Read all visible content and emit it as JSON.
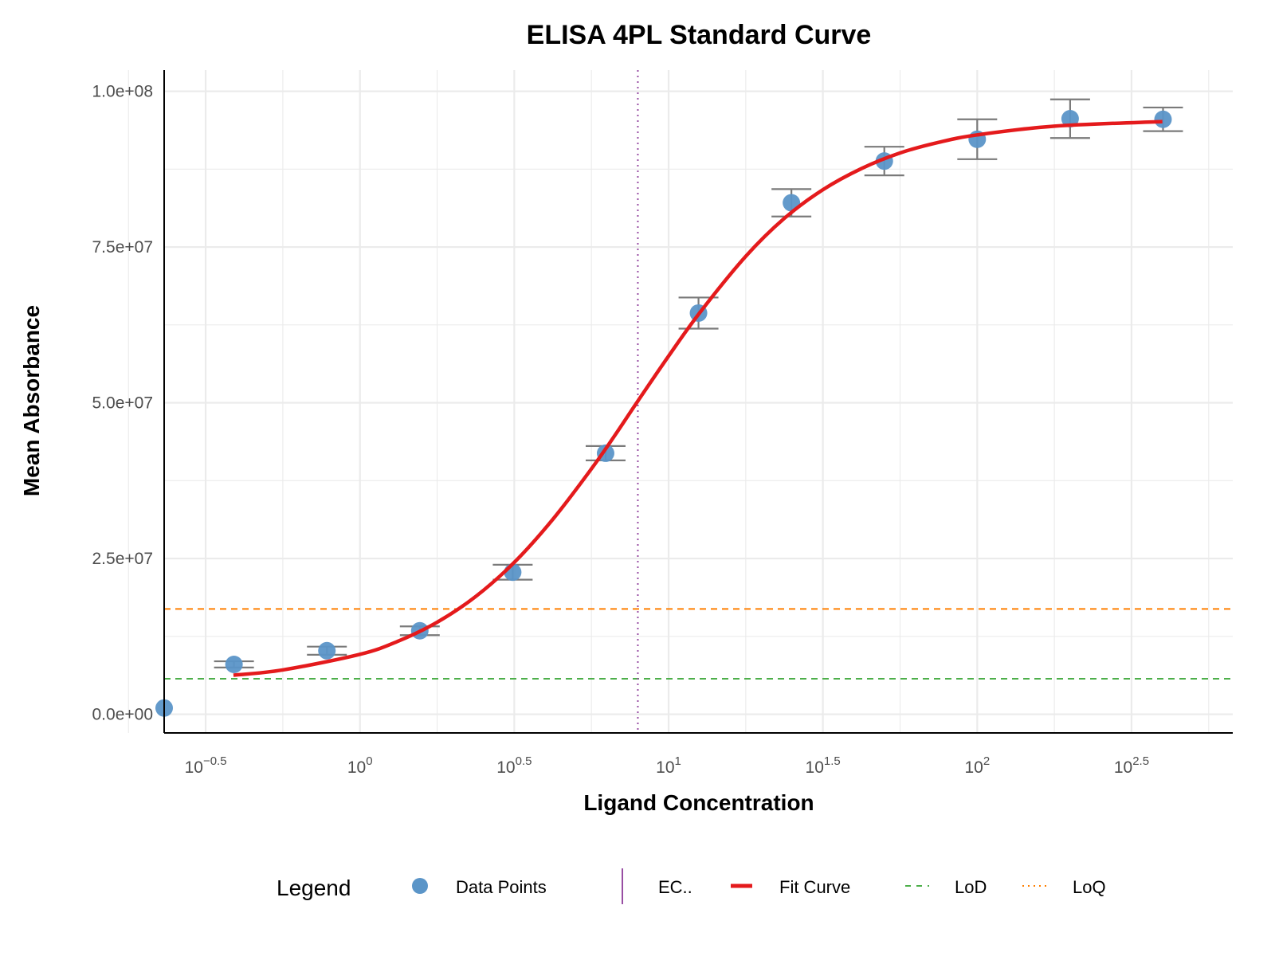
{
  "chart_data": {
    "type": "scatter",
    "title": "ELISA 4PL Standard Curve",
    "xlabel": "Ligand Concentration",
    "ylabel": "Mean Absorbance",
    "x_scale": "log10",
    "xlim": [
      0.232,
      673
    ],
    "ylim": [
      -3000000,
      103400000
    ],
    "grid": true,
    "x_ticks": [
      {
        "value": 0.3162,
        "base": "10",
        "exp": "−0.5"
      },
      {
        "value": 1,
        "base": "10",
        "exp": "0"
      },
      {
        "value": 3.162,
        "base": "10",
        "exp": "0.5"
      },
      {
        "value": 10,
        "base": "10",
        "exp": "1"
      },
      {
        "value": 31.62,
        "base": "10",
        "exp": "1.5"
      },
      {
        "value": 100,
        "base": "10",
        "exp": "2"
      },
      {
        "value": 316.2,
        "base": "10",
        "exp": "2.5"
      }
    ],
    "y_ticks": [
      {
        "value": 0,
        "label": "0.0e+00"
      },
      {
        "value": 25000000,
        "label": "2.5e+07"
      },
      {
        "value": 50000000,
        "label": "5.0e+07"
      },
      {
        "value": 75000000,
        "label": "7.5e+07"
      },
      {
        "value": 100000000,
        "label": "1.0e+08"
      }
    ],
    "series": [
      {
        "name": "Data Points",
        "type": "scatter",
        "color": "#5b95c8",
        "x": [
          0,
          0.390625,
          0.78125,
          1.5625,
          3.125,
          6.25,
          12.5,
          25,
          50,
          100,
          200,
          400
        ],
        "y": [
          1000000,
          8000000,
          10200000,
          13400000,
          22800000,
          41900000,
          64400000,
          82100000,
          88800000,
          92300000,
          95600000,
          95500000
        ],
        "error": [
          0,
          500000,
          650000,
          700000,
          1200000,
          1150000,
          2500000,
          2200000,
          2300000,
          3200000,
          3100000,
          1900000
        ]
      },
      {
        "name": "Fit Curve",
        "type": "line",
        "color": "#e41a1c",
        "x": [
          0.389,
          0.562,
          1,
          1.334,
          1.778,
          2.371,
          3.162,
          4.217,
          5.623,
          6.683,
          7.943,
          10,
          12.59,
          17.78,
          23.71,
          31.62,
          42.17,
          56.23,
          74.99,
          100,
          177.8,
          398.1
        ],
        "y": [
          6270000,
          7110000,
          9620000,
          11760000,
          14770000,
          18900000,
          24380000,
          31300000,
          39400000,
          44700000,
          50250000,
          57500000,
          64400000,
          73500000,
          79600000,
          84200000,
          87600000,
          90100000,
          91800000,
          93000000,
          94400000,
          95140000
        ]
      }
    ],
    "ec50": {
      "name": "EC..",
      "x": 7.95,
      "color": "#984ea3"
    },
    "lod": {
      "name": "LoD",
      "y": 5700000,
      "color": "#4daf4a"
    },
    "loq": {
      "name": "LoQ",
      "y": 16900000,
      "color": "#ff7f00"
    },
    "legend": {
      "title": "Legend",
      "position": "bottom",
      "items": [
        "Data Points",
        "EC..",
        "Fit Curve",
        "LoD",
        "LoQ"
      ]
    }
  }
}
